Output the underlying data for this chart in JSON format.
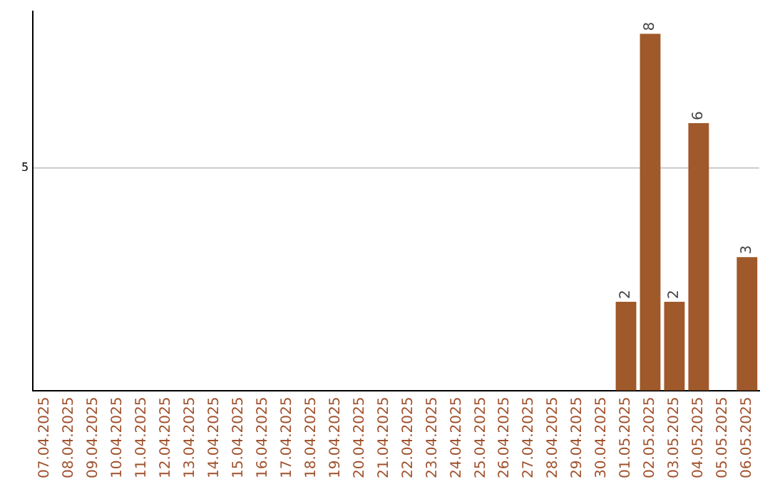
{
  "chart_data": {
    "type": "bar",
    "ylim": [
      0,
      8.5
    ],
    "yticks": [
      {
        "value": 0,
        "label": null
      },
      5
    ],
    "grid": "y",
    "data_labels": true,
    "categories": [
      "07.04.2025",
      "08.04.2025",
      "09.04.2025",
      "10.04.2025",
      "11.04.2025",
      "12.04.2025",
      "13.04.2025",
      "14.04.2025",
      "15.04.2025",
      "16.04.2025",
      "17.04.2025",
      "18.04.2025",
      "19.04.2025",
      "20.04.2025",
      "21.04.2025",
      "22.04.2025",
      "23.04.2025",
      "24.04.2025",
      "25.04.2025",
      "26.04.2025",
      "27.04.2025",
      "28.04.2025",
      "29.04.2025",
      "30.04.2025",
      "01.05.2025",
      "02.05.2025",
      "03.05.2025",
      "04.05.2025",
      "05.05.2025",
      "06.05.2025"
    ],
    "values": [
      null,
      null,
      null,
      null,
      null,
      null,
      null,
      null,
      null,
      null,
      null,
      null,
      null,
      null,
      null,
      null,
      null,
      null,
      null,
      null,
      null,
      null,
      null,
      null,
      2,
      8,
      2,
      6,
      null,
      3
    ],
    "color": "#a0592a"
  }
}
